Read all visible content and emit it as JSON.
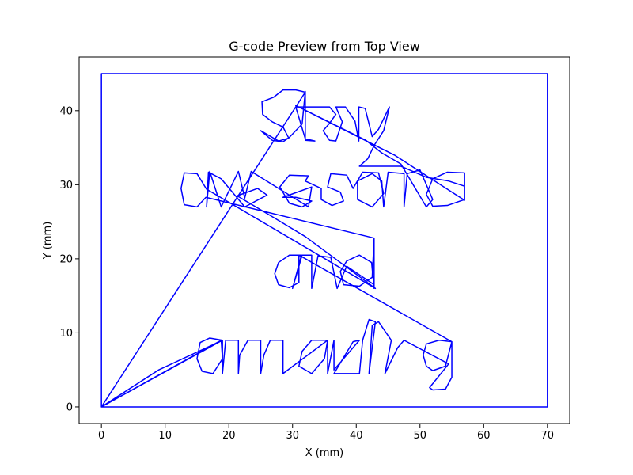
{
  "chart_data": {
    "type": "line",
    "title": "G-code Preview from Top View",
    "xlabel": "X (mm)",
    "ylabel": "Y (mm)",
    "xlim": [
      -3.5,
      73.5
    ],
    "ylim": [
      -2.25,
      47.25
    ],
    "xticks": [
      0,
      10,
      20,
      30,
      40,
      50,
      60,
      70
    ],
    "yticks": [
      0,
      10,
      20,
      30,
      40
    ],
    "grid": false,
    "legend": "none",
    "color": "#0000ff",
    "series": [
      {
        "values": [
          [
            0,
            0
          ],
          [
            70,
            0
          ],
          [
            70,
            45
          ],
          [
            0,
            45
          ],
          [
            0,
            0
          ],
          [
            32.0,
            42.5
          ],
          [
            30.5,
            42.8
          ],
          [
            28.5,
            42.8
          ],
          [
            27.0,
            41.8
          ],
          [
            25.2,
            41.2
          ],
          [
            25.3,
            39.5
          ],
          [
            26.8,
            38.5
          ],
          [
            28.5,
            37.8
          ],
          [
            29.4,
            36.3
          ],
          [
            27.8,
            35.9
          ],
          [
            25.0,
            37.3
          ],
          [
            26.8,
            36.0
          ],
          [
            28.5,
            35.8
          ],
          [
            29.5,
            36.4
          ],
          [
            31.5,
            38.2
          ],
          [
            32.0,
            42.6
          ],
          [
            32.0,
            36.0
          ],
          [
            33.5,
            35.9
          ],
          [
            32.0,
            36.2
          ],
          [
            30.5,
            40.5
          ],
          [
            35.8,
            40.5
          ],
          [
            36.8,
            39.5
          ],
          [
            35.8,
            38.3
          ],
          [
            34.8,
            37.3
          ],
          [
            35.8,
            36.0
          ],
          [
            36.8,
            35.9
          ],
          [
            37.8,
            38.5
          ],
          [
            36.8,
            40.5
          ],
          [
            38.3,
            40.5
          ],
          [
            39.8,
            38.6
          ],
          [
            40.4,
            35.9
          ],
          [
            40.4,
            40.5
          ],
          [
            41.4,
            40.3
          ],
          [
            42.5,
            36.5
          ],
          [
            43.5,
            37.5
          ],
          [
            45.2,
            40.5
          ],
          [
            44.3,
            37.3
          ],
          [
            42.8,
            35.3
          ],
          [
            41.8,
            33.5
          ],
          [
            40.5,
            32.5
          ],
          [
            47.0,
            32.5
          ],
          [
            51.0,
            31.0
          ],
          [
            54.5,
            30.5
          ],
          [
            57.0,
            29.8
          ],
          [
            57.0,
            28.0
          ],
          [
            54.3,
            27.2
          ],
          [
            52.0,
            27.1
          ],
          [
            51.0,
            28.7
          ],
          [
            52.0,
            30.8
          ],
          [
            54.3,
            31.7
          ],
          [
            57.0,
            31.6
          ],
          [
            57.0,
            27.9
          ],
          [
            46.0,
            34.0
          ],
          [
            30.5,
            40.7
          ],
          [
            41.5,
            36.0
          ],
          [
            44.0,
            34.3
          ],
          [
            47.0,
            32.8
          ],
          [
            51.0,
            27.0
          ],
          [
            52.0,
            28.0
          ],
          [
            50.0,
            32.0
          ],
          [
            48.0,
            31.5
          ],
          [
            47.5,
            27.0
          ],
          [
            47.5,
            31.5
          ],
          [
            45.0,
            31.7
          ],
          [
            44.3,
            27.0
          ],
          [
            44.0,
            30.5
          ],
          [
            42.5,
            31.5
          ],
          [
            40.2,
            30.5
          ],
          [
            40.2,
            28.0
          ],
          [
            42.5,
            27.0
          ],
          [
            44.3,
            28.8
          ],
          [
            43.5,
            31.6
          ],
          [
            41.0,
            31.7
          ],
          [
            39.5,
            29.5
          ],
          [
            38.5,
            31.3
          ],
          [
            36.0,
            31.5
          ],
          [
            35.5,
            29.7
          ],
          [
            37.5,
            29.0
          ],
          [
            38.0,
            27.8
          ],
          [
            36.2,
            27.2
          ],
          [
            34.5,
            28.0
          ],
          [
            34.5,
            29.5
          ],
          [
            32.0,
            30.5
          ],
          [
            32.5,
            31.2
          ],
          [
            29.5,
            31.3
          ],
          [
            28.0,
            29.7
          ],
          [
            29.5,
            27.5
          ],
          [
            31.5,
            27.0
          ],
          [
            33.0,
            27.8
          ],
          [
            30.5,
            28.3
          ],
          [
            28.5,
            28.3
          ],
          [
            33.0,
            29.7
          ],
          [
            32.5,
            27.0
          ],
          [
            23.5,
            31.8
          ],
          [
            22.5,
            28.2
          ],
          [
            21.5,
            31.8
          ],
          [
            20.2,
            29.5
          ],
          [
            18.8,
            27.0
          ],
          [
            17.0,
            31.8
          ],
          [
            16.5,
            27.0
          ],
          [
            16.8,
            31.7
          ],
          [
            18.8,
            30.8
          ],
          [
            22.5,
            27.0
          ],
          [
            26.0,
            28.6
          ],
          [
            24.5,
            29.5
          ],
          [
            21.3,
            28.5
          ],
          [
            26.2,
            26.0
          ],
          [
            32.0,
            23.0
          ],
          [
            43.0,
            16.0
          ],
          [
            16.5,
            29.4
          ],
          [
            15.0,
            31.5
          ],
          [
            13.0,
            31.6
          ],
          [
            12.5,
            29.5
          ],
          [
            13.0,
            27.3
          ],
          [
            15.0,
            27.0
          ],
          [
            16.4,
            28.3
          ],
          [
            42.8,
            22.8
          ],
          [
            42.8,
            16.0
          ],
          [
            42.4,
            19.5
          ],
          [
            40.5,
            20.5
          ],
          [
            38.5,
            19.7
          ],
          [
            37.5,
            18.3
          ],
          [
            38.0,
            16.5
          ],
          [
            40.5,
            16.3
          ],
          [
            42.5,
            17.5
          ],
          [
            42.8,
            22.8
          ],
          [
            42.8,
            16.5
          ],
          [
            38.5,
            19.0
          ],
          [
            37.0,
            16.0
          ],
          [
            36.0,
            20.2
          ],
          [
            34.0,
            20.4
          ],
          [
            33.0,
            16.0
          ],
          [
            33.0,
            20.5
          ],
          [
            31.5,
            20.5
          ],
          [
            30.0,
            16.0
          ],
          [
            31.4,
            20.5
          ],
          [
            29.5,
            20.5
          ],
          [
            27.8,
            19.5
          ],
          [
            27.2,
            18.0
          ],
          [
            27.8,
            16.5
          ],
          [
            29.5,
            16.1
          ],
          [
            31.0,
            16.8
          ],
          [
            31.0,
            20.5
          ],
          [
            55.0,
            8.8
          ],
          [
            54.0,
            5.5
          ],
          [
            52.0,
            4.9
          ],
          [
            51.0,
            5.5
          ],
          [
            50.5,
            7.0
          ],
          [
            51.0,
            8.5
          ],
          [
            53.0,
            9.0
          ],
          [
            55.0,
            8.8
          ],
          [
            55.0,
            4.0
          ],
          [
            54.0,
            2.4
          ],
          [
            52.0,
            2.3
          ],
          [
            51.5,
            2.6
          ],
          [
            54.5,
            5.8
          ],
          [
            47.5,
            9.0
          ],
          [
            46.5,
            8.0
          ],
          [
            44.5,
            4.5
          ],
          [
            45.5,
            9.0
          ],
          [
            43.5,
            11.5
          ],
          [
            42.5,
            11.0
          ],
          [
            42.0,
            4.5
          ],
          [
            43.0,
            11.5
          ],
          [
            42.0,
            11.8
          ],
          [
            41.0,
            9.0
          ],
          [
            40.5,
            4.5
          ],
          [
            36.5,
            4.5
          ],
          [
            39.5,
            8.8
          ],
          [
            40.5,
            9.0
          ],
          [
            36.5,
            5.0
          ],
          [
            36.5,
            9.0
          ],
          [
            35.5,
            4.5
          ],
          [
            35.5,
            9.0
          ],
          [
            33.0,
            9.0
          ],
          [
            31.5,
            7.5
          ],
          [
            31.0,
            5.5
          ],
          [
            33.0,
            4.5
          ],
          [
            35.0,
            6.5
          ],
          [
            35.5,
            9.0
          ],
          [
            28.5,
            4.5
          ],
          [
            28.5,
            9.0
          ],
          [
            26.5,
            9.0
          ],
          [
            25.5,
            7.0
          ],
          [
            25.0,
            4.5
          ],
          [
            25.0,
            9.0
          ],
          [
            23.0,
            9.0
          ],
          [
            21.7,
            7.0
          ],
          [
            21.5,
            4.5
          ],
          [
            21.5,
            9.0
          ],
          [
            19.5,
            9.0
          ],
          [
            19.0,
            4.5
          ],
          [
            19.0,
            9.0
          ],
          [
            17.0,
            9.3
          ],
          [
            15.5,
            8.7
          ],
          [
            15.0,
            6.5
          ],
          [
            15.8,
            4.8
          ],
          [
            17.5,
            4.5
          ],
          [
            19.0,
            6.5
          ],
          [
            18.8,
            9.0
          ],
          [
            0,
            0
          ],
          [
            9.0,
            5.0
          ],
          [
            19.0,
            9.0
          ],
          [
            0,
            0
          ]
        ]
      }
    ]
  }
}
